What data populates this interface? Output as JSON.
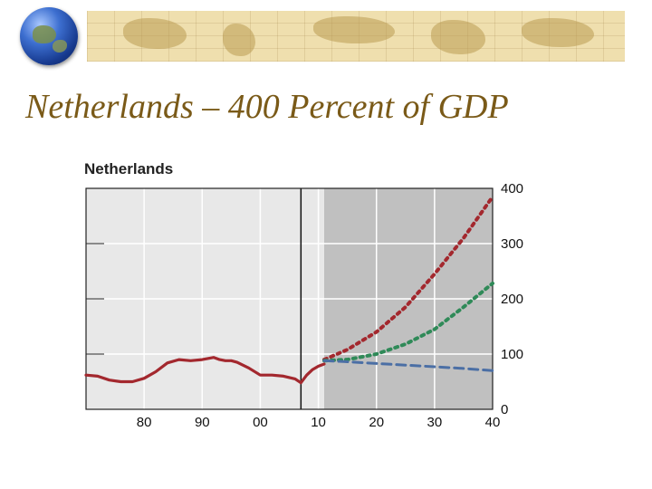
{
  "slide": {
    "title": "Netherlands – 400 Percent of GDP"
  },
  "chart_data": {
    "type": "line",
    "title": "Netherlands",
    "xlabel": "",
    "ylabel": "",
    "xlim": [
      1970,
      2040
    ],
    "ylim": [
      0,
      400
    ],
    "x_ticks": [
      1980,
      1990,
      2000,
      2010,
      2020,
      2030,
      2040
    ],
    "x_tick_labels": [
      "80",
      "90",
      "00",
      "10",
      "20",
      "30",
      "40"
    ],
    "y_ticks": [
      0,
      100,
      200,
      300,
      400
    ],
    "y_tick_labels": [
      "0",
      "100",
      "200",
      "300",
      "400"
    ],
    "projection_start": 2011,
    "grid": true,
    "colors": {
      "historical": "#a3282e",
      "upper_projection": "#a3282e",
      "middle_projection": "#2f8a58",
      "lower_projection": "#4b6fa5",
      "history_bg": "#e8e8e8",
      "projection_bg": "#c0c0c0"
    },
    "series": [
      {
        "style": "solid",
        "x": [
          1970,
          1972,
          1974,
          1976,
          1978,
          1980,
          1982,
          1984,
          1986,
          1988,
          1990,
          1992,
          1993,
          1994,
          1995,
          1996,
          1998,
          2000,
          2002,
          2004,
          2006,
          2007,
          2008,
          2009,
          2010,
          2011
        ],
        "y": [
          62,
          60,
          53,
          50,
          50,
          56,
          68,
          84,
          90,
          88,
          90,
          94,
          90,
          88,
          88,
          85,
          75,
          62,
          62,
          60,
          55,
          48,
          62,
          72,
          78,
          82
        ]
      },
      {
        "style": "dotted",
        "x": [
          2011,
          2015,
          2020,
          2025,
          2030,
          2035,
          2040
        ],
        "y": [
          90,
          108,
          140,
          185,
          245,
          310,
          385
        ]
      },
      {
        "style": "dotted",
        "x": [
          2011,
          2015,
          2020,
          2025,
          2030,
          2035,
          2040
        ],
        "y": [
          88,
          90,
          100,
          118,
          145,
          185,
          228
        ]
      },
      {
        "style": "dashed",
        "x": [
          2011,
          2015,
          2020,
          2025,
          2030,
          2035,
          2040
        ],
        "y": [
          88,
          86,
          83,
          80,
          77,
          74,
          70
        ]
      }
    ]
  }
}
